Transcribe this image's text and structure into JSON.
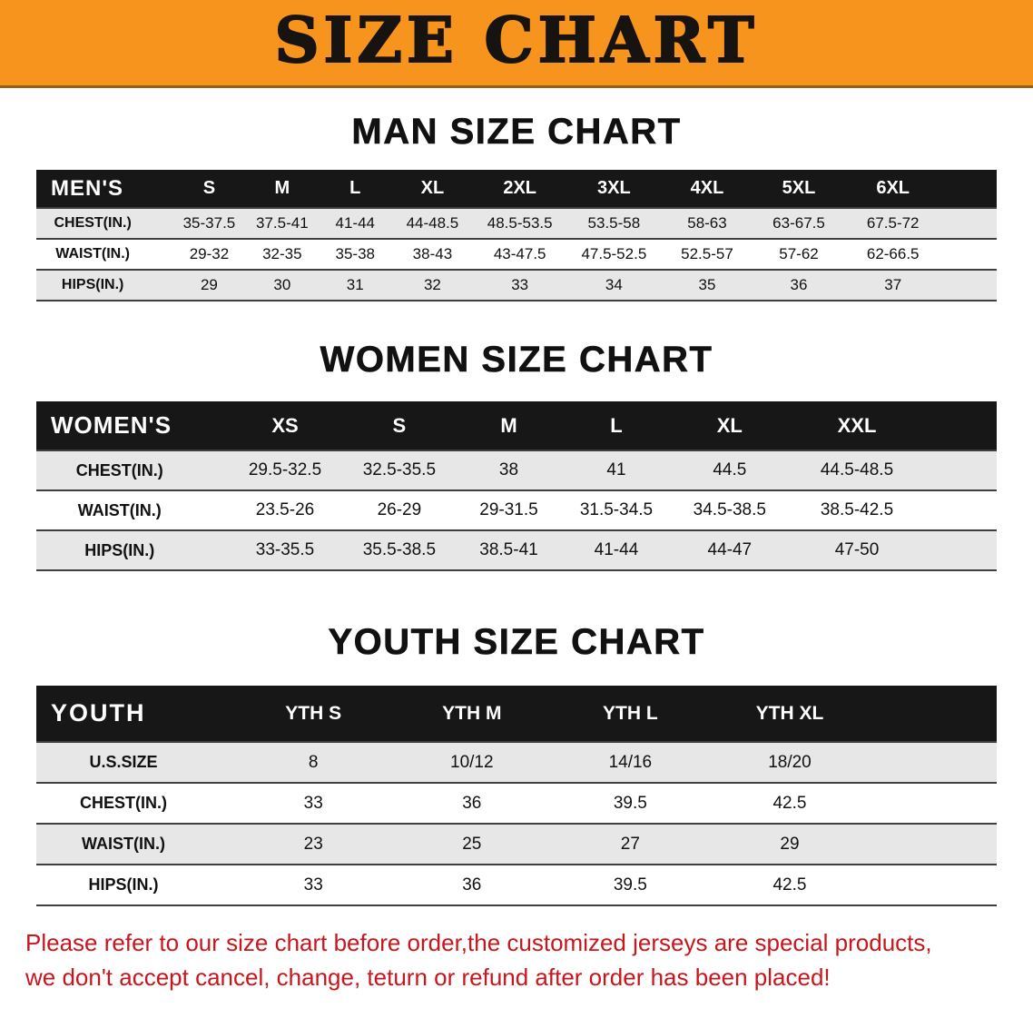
{
  "banner": {
    "title": "SIZE CHART"
  },
  "colors": {
    "banner_bg": "#F7941D",
    "table_header_bg": "#171717",
    "table_header_text": "#FFFFFF",
    "stripe_row_bg": "#E7E7E7",
    "notice_text": "#C8161D"
  },
  "sections": [
    {
      "id": "men",
      "title": "MAN SIZE CHART",
      "header_label": "MEN'S",
      "columns": [
        "S",
        "M",
        "L",
        "XL",
        "2XL",
        "3XL",
        "4XL",
        "5XL",
        "6XL"
      ],
      "rows": [
        {
          "label": "CHEST(IN.)",
          "values": [
            "35-37.5",
            "37.5-41",
            "41-44",
            "44-48.5",
            "48.5-53.5",
            "53.5-58",
            "58-63",
            "63-67.5",
            "67.5-72"
          ]
        },
        {
          "label": "WAIST(IN.)",
          "values": [
            "29-32",
            "32-35",
            "35-38",
            "38-43",
            "43-47.5",
            "47.5-52.5",
            "52.5-57",
            "57-62",
            "62-66.5"
          ]
        },
        {
          "label": "HIPS(IN.)",
          "values": [
            "29",
            "30",
            "31",
            "32",
            "33",
            "34",
            "35",
            "36",
            "37"
          ]
        }
      ]
    },
    {
      "id": "women",
      "title": "WOMEN SIZE CHART",
      "header_label": "WOMEN'S",
      "columns": [
        "XS",
        "S",
        "M",
        "L",
        "XL",
        "XXL"
      ],
      "rows": [
        {
          "label": "CHEST(IN.)",
          "values": [
            "29.5-32.5",
            "32.5-35.5",
            "38",
            "41",
            "44.5",
            "44.5-48.5"
          ]
        },
        {
          "label": "WAIST(IN.)",
          "values": [
            "23.5-26",
            "26-29",
            "29-31.5",
            "31.5-34.5",
            "34.5-38.5",
            "38.5-42.5"
          ]
        },
        {
          "label": "HIPS(IN.)",
          "values": [
            "33-35.5",
            "35.5-38.5",
            "38.5-41",
            "41-44",
            "44-47",
            "47-50"
          ]
        }
      ]
    },
    {
      "id": "youth",
      "title": "YOUTH SIZE CHART",
      "header_label": "YOUTH",
      "columns": [
        "YTH S",
        "YTH M",
        "YTH L",
        "YTH XL"
      ],
      "rows": [
        {
          "label": "U.S.SIZE",
          "values": [
            "8",
            "10/12",
            "14/16",
            "18/20"
          ]
        },
        {
          "label": "CHEST(IN.)",
          "values": [
            "33",
            "36",
            "39.5",
            "42.5"
          ]
        },
        {
          "label": "WAIST(IN.)",
          "values": [
            "23",
            "25",
            "27",
            "29"
          ]
        },
        {
          "label": "HIPS(IN.)",
          "values": [
            "33",
            "36",
            "39.5",
            "42.5"
          ]
        }
      ]
    }
  ],
  "footer": {
    "lines": [
      "Please refer to our size chart before order,the customized jerseys are special products,",
      "we don't accept cancel, change, teturn or refund after order has been placed!"
    ]
  }
}
